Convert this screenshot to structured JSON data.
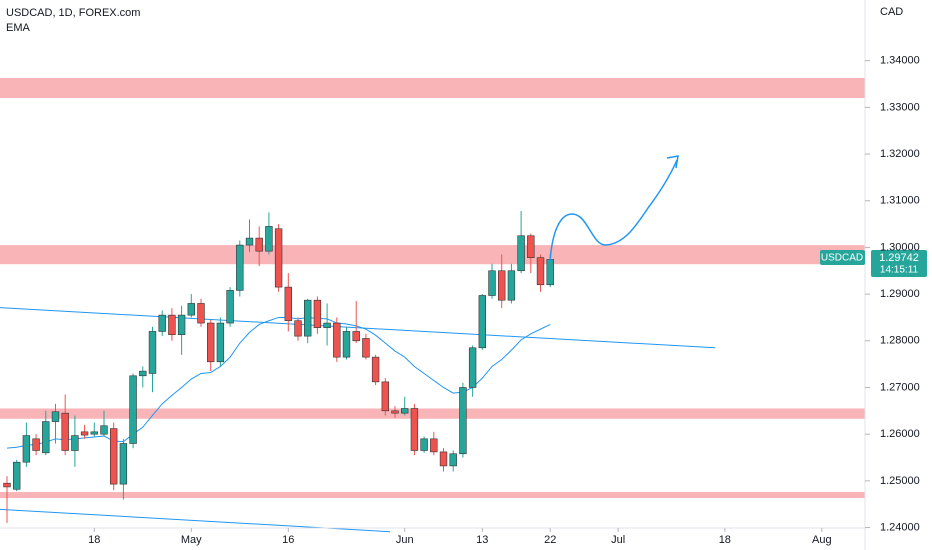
{
  "chart_data": {
    "type": "candlestick",
    "title": "USDCAD, 1D, FOREX.com",
    "indicator": "EMA",
    "axis_unit": "CAD",
    "badge_name": "USDCAD",
    "countdown": "14:15:11",
    "up_color": "#26a69a",
    "down_color": "#ef5350",
    "ema_color": "#2196f3",
    "zone_color": "#f8b4b7",
    "x": [
      0,
      1,
      2,
      3,
      4,
      5,
      6,
      7,
      8,
      9,
      10,
      11,
      12,
      13,
      14,
      15,
      16,
      17,
      18,
      19,
      20,
      21,
      22,
      23,
      24,
      25,
      26,
      27,
      28,
      29,
      30,
      31,
      32,
      33,
      34,
      35,
      36,
      37,
      38,
      39,
      40,
      41,
      42,
      43,
      44,
      45,
      46,
      47,
      48,
      49,
      50,
      51,
      52,
      53,
      54,
      55,
      56
    ],
    "open": [
      1.2495,
      1.2482,
      1.254,
      1.259,
      1.256,
      1.2627,
      1.2645,
      1.2565,
      1.2605,
      1.26,
      1.26,
      1.2612,
      1.2493,
      1.258,
      1.2725,
      1.273,
      1.282,
      1.2855,
      1.2813,
      1.2855,
      1.288,
      1.2838,
      1.2755,
      1.2838,
      1.2908,
      1.3005,
      1.302,
      1.2992,
      1.304,
      1.2915,
      1.2843,
      1.281,
      1.2887,
      1.2828,
      1.2838,
      1.2765,
      1.282,
      1.2805,
      1.2765,
      1.2712,
      1.265,
      1.2645,
      1.2655,
      1.2565,
      1.259,
      1.2562,
      1.2532,
      1.2558,
      1.27,
      1.2785,
      1.2897,
      1.295,
      1.2887,
      1.295,
      1.3025,
      1.2978,
      1.292
    ],
    "high": [
      1.251,
      1.2545,
      1.2625,
      1.26,
      1.265,
      1.2665,
      1.2685,
      1.264,
      1.262,
      1.2625,
      1.265,
      1.2625,
      1.259,
      1.273,
      1.2745,
      1.283,
      1.2865,
      1.287,
      1.2875,
      1.29,
      1.289,
      1.2845,
      1.285,
      1.2915,
      1.3015,
      1.306,
      1.3045,
      1.3075,
      1.305,
      1.2945,
      1.285,
      1.289,
      1.2895,
      1.288,
      1.285,
      1.283,
      1.2885,
      1.2815,
      1.277,
      1.272,
      1.266,
      1.268,
      1.2665,
      1.2595,
      1.2605,
      1.257,
      1.2565,
      1.271,
      1.279,
      1.29,
      1.2965,
      1.2985,
      1.2965,
      1.3078,
      1.303,
      1.2985,
      1.2985
    ],
    "low": [
      1.241,
      1.2478,
      1.253,
      1.2555,
      1.2555,
      1.258,
      1.2555,
      1.253,
      1.259,
      1.2595,
      1.2595,
      1.248,
      1.246,
      1.257,
      1.27,
      1.269,
      1.281,
      1.28,
      1.277,
      1.285,
      1.283,
      1.2735,
      1.2745,
      1.283,
      1.2895,
      1.299,
      1.296,
      1.2985,
      1.2905,
      1.282,
      1.28,
      1.2795,
      1.2815,
      1.279,
      1.2755,
      1.276,
      1.2795,
      1.276,
      1.2705,
      1.264,
      1.2635,
      1.264,
      1.2555,
      1.256,
      1.2555,
      1.252,
      1.252,
      1.255,
      1.268,
      1.278,
      1.289,
      1.287,
      1.288,
      1.2945,
      1.2945,
      1.2905,
      1.2915
    ],
    "close": [
      1.2487,
      1.254,
      1.2597,
      1.2565,
      1.2627,
      1.2648,
      1.2565,
      1.2597,
      1.2598,
      1.2605,
      1.2618,
      1.2493,
      1.258,
      1.2725,
      1.2735,
      1.282,
      1.2855,
      1.2813,
      1.2855,
      1.288,
      1.2838,
      1.2755,
      1.2838,
      1.2908,
      1.3005,
      1.302,
      1.2992,
      1.3045,
      1.2915,
      1.2843,
      1.281,
      1.2887,
      1.2828,
      1.2838,
      1.2765,
      1.282,
      1.28,
      1.2765,
      1.2712,
      1.265,
      1.2645,
      1.2655,
      1.2565,
      1.259,
      1.2562,
      1.2532,
      1.2558,
      1.27,
      1.2785,
      1.2897,
      1.295,
      1.2887,
      1.295,
      1.3025,
      1.2978,
      1.292,
      1.29742
    ],
    "ema": [
      1.257,
      1.2572,
      1.2576,
      1.2578,
      1.2583,
      1.259,
      1.2588,
      1.259,
      1.2592,
      1.2594,
      1.2596,
      1.2585,
      1.2584,
      1.26,
      1.2615,
      1.264,
      1.2665,
      1.2683,
      1.27,
      1.2718,
      1.273,
      1.2732,
      1.2745,
      1.2765,
      1.2795,
      1.2818,
      1.2835,
      1.2843,
      1.285,
      1.285,
      1.2847,
      1.285,
      1.2848,
      1.2847,
      1.2838,
      1.2836,
      1.2832,
      1.2825,
      1.2812,
      1.2795,
      1.2778,
      1.2765,
      1.2745,
      1.273,
      1.2715,
      1.27,
      1.2688,
      1.269,
      1.27,
      1.272,
      1.2745,
      1.276,
      1.278,
      1.2802,
      1.2815,
      1.2825,
      1.2835
    ],
    "zones": [
      {
        "top": 1.3363,
        "bottom": 1.332
      },
      {
        "top": 1.3005,
        "bottom": 1.2964
      },
      {
        "top": 1.2655,
        "bottom": 1.2633
      },
      {
        "top": 1.2476,
        "bottom": 1.2463
      }
    ],
    "trend_lines": [
      {
        "x": [
          -0.72,
          73
        ],
        "y": [
          1.2871,
          1.2785
        ]
      },
      {
        "x": [
          -0.72,
          39.5
        ],
        "y": [
          1.2439,
          1.2391
        ]
      }
    ],
    "xlim": [
      -0.72,
      88.45
    ],
    "ylim": [
      1.2399,
      1.353
    ],
    "xticks": [
      {
        "value": 9,
        "label": "18"
      },
      {
        "value": 19,
        "label": "May"
      },
      {
        "value": 29,
        "label": "16"
      },
      {
        "value": 41,
        "label": "Jun"
      },
      {
        "value": 49,
        "label": "13"
      },
      {
        "value": 56,
        "label": "22"
      },
      {
        "value": 63,
        "label": "Jul"
      },
      {
        "value": 74,
        "label": "18"
      },
      {
        "value": 84,
        "label": "Aug"
      }
    ],
    "yticks": [
      {
        "value": 1.24,
        "label": "1.24000"
      },
      {
        "value": 1.25,
        "label": "1.25000"
      },
      {
        "value": 1.26,
        "label": "1.26000"
      },
      {
        "value": 1.27,
        "label": "1.27000"
      },
      {
        "value": 1.28,
        "label": "1.28000"
      },
      {
        "value": 1.29,
        "label": "1.29000"
      },
      {
        "value": 1.3,
        "label": "1.30000"
      },
      {
        "value": 1.31,
        "label": "1.31000"
      },
      {
        "value": 1.32,
        "label": "1.32000"
      },
      {
        "value": 1.33,
        "label": "1.33000"
      },
      {
        "value": 1.34,
        "label": "1.34000"
      }
    ]
  }
}
